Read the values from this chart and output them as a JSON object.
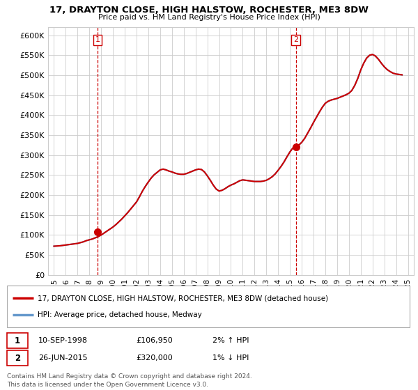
{
  "title_line1": "17, DRAYTON CLOSE, HIGH HALSTOW, ROCHESTER, ME3 8DW",
  "title_line2": "Price paid vs. HM Land Registry's House Price Index (HPI)",
  "legend_label_property": "17, DRAYTON CLOSE, HIGH HALSTOW, ROCHESTER, ME3 8DW (detached house)",
  "legend_label_hpi": "HPI: Average price, detached house, Medway",
  "sale1_label": "1",
  "sale1_date": "10-SEP-1998",
  "sale1_price": "£106,950",
  "sale1_hpi": "2% ↑ HPI",
  "sale2_label": "2",
  "sale2_date": "26-JUN-2015",
  "sale2_price": "£320,000",
  "sale2_hpi": "1% ↓ HPI",
  "footer_line1": "Contains HM Land Registry data © Crown copyright and database right 2024.",
  "footer_line2": "This data is licensed under the Open Government Licence v3.0.",
  "ylim": [
    0,
    620000
  ],
  "yticks": [
    0,
    50000,
    100000,
    150000,
    200000,
    250000,
    300000,
    350000,
    400000,
    450000,
    500000,
    550000,
    600000
  ],
  "sale1_year": 1998.7,
  "sale1_value": 106950,
  "sale2_year": 2015.5,
  "sale2_value": 320000,
  "hpi_color": "#6699cc",
  "property_color": "#cc0000",
  "marker_color": "#cc0000",
  "vline_color": "#cc0000",
  "bg_color": "#ffffff",
  "grid_color": "#cccccc",
  "years_hpi": [
    1995,
    1995.25,
    1995.5,
    1995.75,
    1996,
    1996.25,
    1996.5,
    1996.75,
    1997,
    1997.25,
    1997.5,
    1997.75,
    1998,
    1998.25,
    1998.5,
    1998.75,
    1999,
    1999.25,
    1999.5,
    1999.75,
    2000,
    2000.25,
    2000.5,
    2000.75,
    2001,
    2001.25,
    2001.5,
    2001.75,
    2002,
    2002.25,
    2002.5,
    2002.75,
    2003,
    2003.25,
    2003.5,
    2003.75,
    2004,
    2004.25,
    2004.5,
    2004.75,
    2005,
    2005.25,
    2005.5,
    2005.75,
    2006,
    2006.25,
    2006.5,
    2006.75,
    2007,
    2007.25,
    2007.5,
    2007.75,
    2008,
    2008.25,
    2008.5,
    2008.75,
    2009,
    2009.25,
    2009.5,
    2009.75,
    2010,
    2010.25,
    2010.5,
    2010.75,
    2011,
    2011.25,
    2011.5,
    2011.75,
    2012,
    2012.25,
    2012.5,
    2012.75,
    2013,
    2013.25,
    2013.5,
    2013.75,
    2014,
    2014.25,
    2014.5,
    2014.75,
    2015,
    2015.25,
    2015.5,
    2015.75,
    2016,
    2016.25,
    2016.5,
    2016.75,
    2017,
    2017.25,
    2017.5,
    2017.75,
    2018,
    2018.25,
    2018.5,
    2018.75,
    2019,
    2019.25,
    2019.5,
    2019.75,
    2020,
    2020.25,
    2020.5,
    2020.75,
    2021,
    2021.25,
    2021.5,
    2021.75,
    2022,
    2022.25,
    2022.5,
    2022.75,
    2023,
    2023.25,
    2023.5,
    2023.75,
    2024,
    2024.25,
    2024.5
  ],
  "hpi_values": [
    72000,
    72500,
    73000,
    74000,
    75000,
    76000,
    77000,
    78000,
    79000,
    81000,
    83000,
    86000,
    88000,
    90000,
    93000,
    96000,
    100000,
    105000,
    110000,
    115000,
    120000,
    126000,
    133000,
    140000,
    148000,
    156000,
    165000,
    174000,
    183000,
    196000,
    210000,
    222000,
    233000,
    243000,
    251000,
    257000,
    263000,
    265000,
    263000,
    260000,
    258000,
    255000,
    253000,
    252000,
    252000,
    254000,
    257000,
    260000,
    263000,
    265000,
    264000,
    258000,
    248000,
    237000,
    225000,
    215000,
    210000,
    212000,
    216000,
    221000,
    225000,
    228000,
    232000,
    236000,
    238000,
    237000,
    236000,
    235000,
    234000,
    234000,
    234000,
    235000,
    237000,
    241000,
    246000,
    253000,
    262000,
    272000,
    283000,
    296000,
    308000,
    318000,
    320000,
    325000,
    332000,
    342000,
    355000,
    368000,
    382000,
    395000,
    408000,
    420000,
    430000,
    435000,
    438000,
    440000,
    442000,
    445000,
    448000,
    451000,
    455000,
    462000,
    475000,
    492000,
    513000,
    530000,
    543000,
    550000,
    552000,
    548000,
    540000,
    530000,
    521000,
    514000,
    509000,
    505000,
    503000,
    502000,
    501000
  ]
}
